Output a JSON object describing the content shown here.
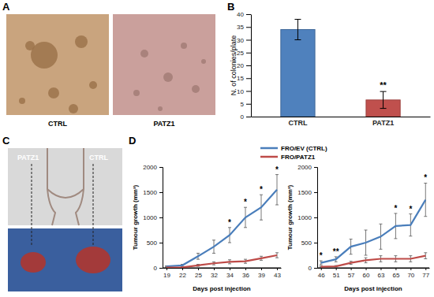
{
  "figure": {
    "panel_labels": [
      "A",
      "B",
      "C",
      "D"
    ],
    "panel_a_captions": [
      "CTRL",
      "PATZ1"
    ],
    "panel_c_labels": [
      "PATZ1",
      "CTRL"
    ]
  },
  "chart_data": [
    {
      "type": "bar",
      "categories": [
        "CTRL",
        "PATZ1"
      ],
      "values": [
        34,
        6.5
      ],
      "errors": [
        4,
        3.3
      ],
      "colors": [
        "#4f81bd",
        "#c0504d"
      ],
      "ylabel": "N. of colonies/plate",
      "ylim": [
        0,
        40
      ],
      "yticks": [
        0,
        5,
        10,
        15,
        20,
        25,
        30,
        35,
        40
      ],
      "annotations": [
        {
          "category": "PATZ1",
          "text": "**"
        }
      ],
      "grid": false
    },
    {
      "type": "line",
      "xlabel": "Days post injection",
      "ylabel": "Tumour growth (mm³)",
      "categories": [
        19,
        22,
        25,
        32,
        34,
        36,
        39,
        43
      ],
      "series": [
        {
          "name": "FRO/EV (CTRL)",
          "color": "#4a7ebb",
          "values": [
            30,
            50,
            230,
            420,
            650,
            1000,
            1200,
            1550
          ],
          "errors": [
            10,
            20,
            60,
            130,
            150,
            200,
            250,
            300
          ]
        },
        {
          "name": "FRO/PATZ1",
          "color": "#be4b48",
          "values": [
            5,
            10,
            50,
            90,
            120,
            130,
            190,
            250
          ],
          "errors": [
            3,
            5,
            20,
            30,
            40,
            40,
            40,
            50
          ]
        }
      ],
      "ylim": [
        0,
        2000
      ],
      "yticks": [
        0,
        500,
        1000,
        1500,
        2000
      ],
      "annotations": [
        {
          "category": 34,
          "text": "*"
        },
        {
          "category": 36,
          "text": "*"
        },
        {
          "category": 39,
          "text": "*"
        },
        {
          "category": 43,
          "text": "*"
        }
      ],
      "legend": "top",
      "grid": false
    },
    {
      "type": "line",
      "xlabel": "Days post injection",
      "ylabel": "Tumour growth (mm³)",
      "categories": [
        46,
        51,
        57,
        60,
        63,
        65,
        70,
        77
      ],
      "series": [
        {
          "color": "#4a7ebb",
          "values": [
            100,
            170,
            420,
            500,
            620,
            830,
            850,
            1350
          ],
          "errors": [
            40,
            50,
            150,
            250,
            250,
            250,
            220,
            330
          ]
        },
        {
          "color": "#be4b48",
          "values": [
            20,
            30,
            100,
            150,
            180,
            180,
            180,
            240
          ],
          "errors": [
            10,
            15,
            30,
            50,
            60,
            60,
            60,
            60
          ]
        }
      ],
      "ylim": [
        0,
        2000
      ],
      "yticks": [
        0,
        500,
        1000,
        1500,
        2000
      ],
      "annotations": [
        {
          "category": 46,
          "text": "*"
        },
        {
          "category": 51,
          "text": "**"
        },
        {
          "category": 65,
          "text": "*"
        },
        {
          "category": 70,
          "text": "*"
        },
        {
          "category": 77,
          "text": "*"
        }
      ],
      "grid": false
    }
  ]
}
